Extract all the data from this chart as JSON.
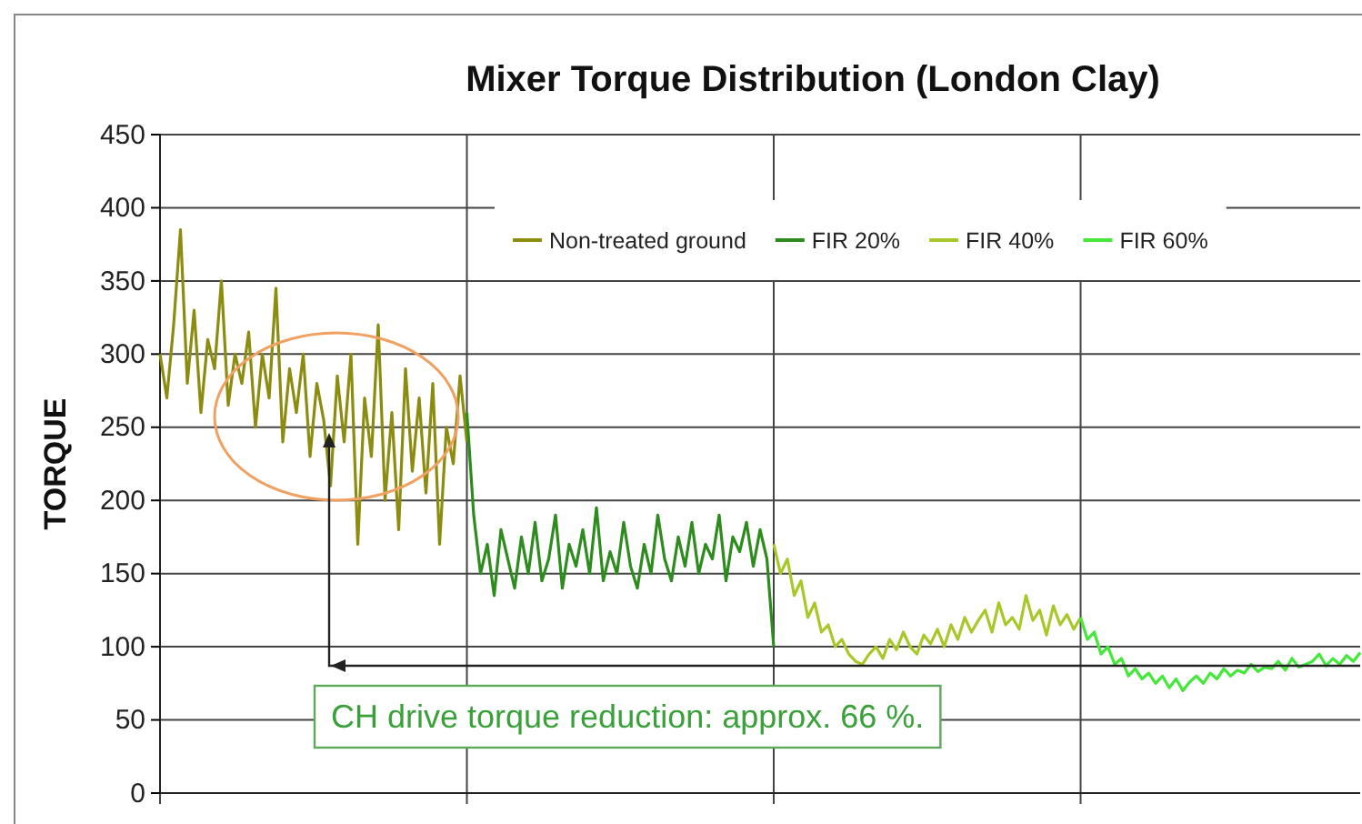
{
  "chart_data": {
    "type": "line",
    "title": "Mixer Torque Distribution (London Clay)",
    "ylabel": "TORQUE",
    "categories": [
      null,
      null,
      null,
      null,
      null,
      null,
      null,
      null,
      null,
      null,
      null,
      null,
      null,
      null,
      null,
      null,
      null,
      null,
      null,
      null,
      null,
      null,
      null,
      null,
      null,
      null,
      null,
      null,
      null,
      null,
      null,
      null,
      null,
      null,
      null,
      null,
      null,
      null,
      null,
      null,
      null,
      null,
      null,
      null,
      null,
      null,
      null,
      null,
      null,
      null,
      null,
      null,
      null,
      null,
      null,
      null,
      null,
      null,
      null,
      null,
      null,
      null,
      null,
      null,
      null,
      null,
      null,
      null,
      null,
      null,
      null,
      null,
      null,
      null,
      null,
      null,
      null,
      null,
      null,
      null,
      null,
      null,
      null,
      null,
      null,
      null,
      null,
      null,
      null,
      null,
      null,
      null,
      null,
      null,
      null,
      null,
      null,
      null,
      null,
      null,
      null,
      null,
      null,
      null,
      null,
      null,
      null,
      null,
      null,
      null,
      null,
      null,
      null,
      null,
      null,
      null,
      null,
      null,
      null,
      null,
      null,
      null,
      null,
      null,
      null,
      null,
      null,
      null,
      null,
      null,
      null,
      null,
      null,
      null,
      null,
      null,
      null,
      null,
      null,
      null,
      null,
      null,
      null,
      null,
      null,
      null,
      null,
      null,
      null,
      null,
      null,
      null,
      null,
      null,
      null,
      null,
      null,
      null,
      null,
      null,
      null,
      null,
      null,
      null,
      null,
      null,
      null,
      null,
      null,
      null,
      null,
      null,
      null,
      null,
      null,
      null,
      null
    ],
    "ylim": [
      0,
      450
    ],
    "yticks": [
      0,
      50,
      100,
      150,
      200,
      250,
      300,
      350,
      400,
      450
    ],
    "grid": true,
    "legend": "top",
    "line_style": "solid",
    "marker": "none",
    "annotations": [
      "CH drive torque reduction: approx. 66 %."
    ],
    "series": [
      {
        "name": "Non-treated ground",
        "color": "#8c8c10",
        "values": [
          300,
          270,
          320,
          385,
          280,
          330,
          260,
          310,
          290,
          350,
          265,
          300,
          280,
          315,
          250,
          300,
          270,
          345,
          240,
          290,
          260,
          300,
          230,
          280,
          255,
          210,
          285,
          240,
          300,
          170,
          270,
          230,
          320,
          200,
          260,
          180,
          290,
          220,
          270,
          205,
          280,
          170,
          250,
          225,
          285,
          240,
          null,
          null,
          null,
          null,
          null,
          null,
          null,
          null,
          null,
          null,
          null,
          null,
          null,
          null,
          null,
          null,
          null,
          null,
          null,
          null,
          null,
          null,
          null,
          null,
          null,
          null,
          null,
          null,
          null,
          null,
          null,
          null,
          null,
          null,
          null,
          null,
          null,
          null,
          null,
          null,
          null,
          null,
          null,
          null,
          null,
          null,
          null,
          null,
          null,
          null,
          null,
          null,
          null,
          null,
          null,
          null,
          null,
          null,
          null,
          null,
          null,
          null,
          null,
          null,
          null,
          null,
          null,
          null,
          null,
          null,
          null,
          null,
          null,
          null,
          null,
          null,
          null,
          null,
          null,
          null,
          null,
          null,
          null,
          null,
          null,
          null,
          null,
          null,
          null,
          null,
          null,
          null,
          null,
          null,
          null,
          null,
          null,
          null,
          null,
          null,
          null,
          null,
          null,
          null,
          null,
          null,
          null,
          null,
          null,
          null,
          null,
          null,
          null,
          null,
          null,
          null,
          null,
          null,
          null,
          null,
          null,
          null,
          null,
          null,
          null,
          null,
          null,
          null,
          null,
          null,
          null
        ]
      },
      {
        "name": "FIR 20%",
        "color": "#2e8b1e",
        "values": [
          null,
          null,
          null,
          null,
          null,
          null,
          null,
          null,
          null,
          null,
          null,
          null,
          null,
          null,
          null,
          null,
          null,
          null,
          null,
          null,
          null,
          null,
          null,
          null,
          null,
          null,
          null,
          null,
          null,
          null,
          null,
          null,
          null,
          null,
          null,
          null,
          null,
          null,
          null,
          null,
          null,
          null,
          null,
          null,
          null,
          260,
          190,
          150,
          170,
          135,
          180,
          160,
          140,
          175,
          150,
          185,
          145,
          160,
          190,
          140,
          170,
          155,
          180,
          150,
          195,
          145,
          165,
          150,
          185,
          155,
          140,
          170,
          150,
          190,
          160,
          145,
          175,
          155,
          185,
          150,
          170,
          160,
          190,
          145,
          175,
          165,
          185,
          155,
          180,
          160,
          100,
          null,
          null,
          null,
          null,
          null,
          null,
          null,
          null,
          null,
          null,
          null,
          null,
          null,
          null,
          null,
          null,
          null,
          null,
          null,
          null,
          null,
          null,
          null,
          null,
          null,
          null,
          null,
          null,
          null,
          null,
          null,
          null,
          null,
          null,
          null,
          null,
          null,
          null,
          null,
          null,
          null,
          null,
          null,
          null,
          null,
          null,
          null,
          null,
          null,
          null,
          null,
          null,
          null,
          null,
          null,
          null,
          null,
          null,
          null,
          null,
          null,
          null,
          null,
          null,
          null,
          null,
          null,
          null,
          null,
          null,
          null,
          null,
          null,
          null,
          null,
          null,
          null,
          null,
          null,
          null,
          null,
          null,
          null,
          null,
          null,
          null
        ]
      },
      {
        "name": "FIR 40%",
        "color": "#a8c82a",
        "values": [
          null,
          null,
          null,
          null,
          null,
          null,
          null,
          null,
          null,
          null,
          null,
          null,
          null,
          null,
          null,
          null,
          null,
          null,
          null,
          null,
          null,
          null,
          null,
          null,
          null,
          null,
          null,
          null,
          null,
          null,
          null,
          null,
          null,
          null,
          null,
          null,
          null,
          null,
          null,
          null,
          null,
          null,
          null,
          null,
          null,
          null,
          null,
          null,
          null,
          null,
          null,
          null,
          null,
          null,
          null,
          null,
          null,
          null,
          null,
          null,
          null,
          null,
          null,
          null,
          null,
          null,
          null,
          null,
          null,
          null,
          null,
          null,
          null,
          null,
          null,
          null,
          null,
          null,
          null,
          null,
          null,
          null,
          null,
          null,
          null,
          null,
          null,
          null,
          null,
          null,
          170,
          150,
          160,
          135,
          145,
          120,
          130,
          110,
          115,
          100,
          105,
          95,
          90,
          88,
          95,
          100,
          92,
          105,
          98,
          110,
          100,
          95,
          108,
          102,
          112,
          100,
          115,
          105,
          120,
          110,
          118,
          125,
          110,
          130,
          115,
          120,
          112,
          135,
          118,
          125,
          108,
          128,
          115,
          122,
          112,
          120,
          null,
          null,
          null,
          null,
          null,
          null,
          null,
          null,
          null,
          null,
          null,
          null,
          null,
          null,
          null,
          null,
          null,
          null,
          null,
          null,
          null,
          null,
          null,
          null,
          null,
          null,
          null,
          null,
          null,
          null,
          null,
          null,
          null,
          null,
          null,
          null,
          null,
          null,
          null,
          null,
          null
        ]
      },
      {
        "name": "FIR 60%",
        "color": "#44e83a",
        "values": [
          null,
          null,
          null,
          null,
          null,
          null,
          null,
          null,
          null,
          null,
          null,
          null,
          null,
          null,
          null,
          null,
          null,
          null,
          null,
          null,
          null,
          null,
          null,
          null,
          null,
          null,
          null,
          null,
          null,
          null,
          null,
          null,
          null,
          null,
          null,
          null,
          null,
          null,
          null,
          null,
          null,
          null,
          null,
          null,
          null,
          null,
          null,
          null,
          null,
          null,
          null,
          null,
          null,
          null,
          null,
          null,
          null,
          null,
          null,
          null,
          null,
          null,
          null,
          null,
          null,
          null,
          null,
          null,
          null,
          null,
          null,
          null,
          null,
          null,
          null,
          null,
          null,
          null,
          null,
          null,
          null,
          null,
          null,
          null,
          null,
          null,
          null,
          null,
          null,
          null,
          null,
          null,
          null,
          null,
          null,
          null,
          null,
          null,
          null,
          null,
          null,
          null,
          null,
          null,
          null,
          null,
          null,
          null,
          null,
          null,
          null,
          null,
          null,
          null,
          null,
          null,
          null,
          null,
          null,
          null,
          null,
          null,
          null,
          null,
          null,
          null,
          null,
          null,
          null,
          null,
          null,
          null,
          null,
          null,
          null,
          120,
          105,
          110,
          95,
          100,
          88,
          92,
          80,
          85,
          78,
          82,
          75,
          80,
          72,
          78,
          70,
          76,
          80,
          75,
          82,
          78,
          85,
          80,
          84,
          82,
          88,
          83,
          86,
          85,
          90,
          84,
          92,
          86,
          88,
          90,
          95,
          87,
          92,
          88,
          94,
          90,
          96
        ]
      }
    ]
  }
}
